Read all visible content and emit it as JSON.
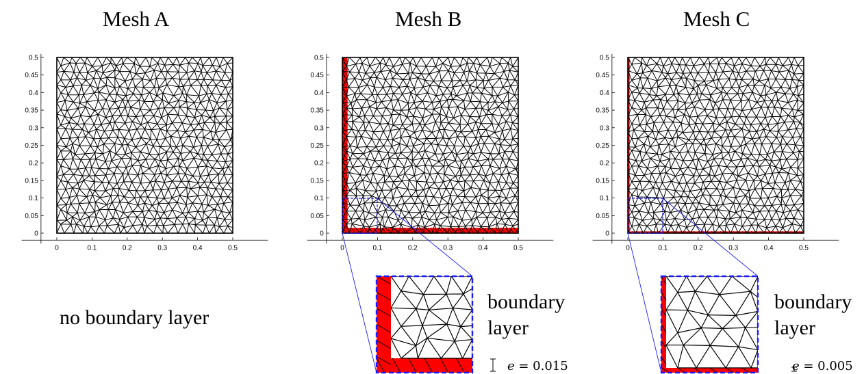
{
  "panels": [
    {
      "title": "Mesh A",
      "caption": "no boundary layer",
      "boundary_layer": false,
      "x_ticks": [
        "0",
        "0.1",
        "0.2",
        "0.3",
        "0.4",
        "0.5"
      ],
      "y_ticks": [
        "0",
        "0.05",
        "0.1",
        "0.15",
        "0.2",
        "0.25",
        "0.3",
        "0.35",
        "0.4",
        "0.45",
        "0.5"
      ]
    },
    {
      "title": "Mesh B",
      "caption_line1": "boundary",
      "caption_line2": "layer",
      "boundary_layer": true,
      "layer_thickness_e": "0.015",
      "eqn_var": "e",
      "eqn_rest": " = 0.015",
      "x_ticks": [
        "0",
        "0.1",
        "0.2",
        "0.3",
        "0.4",
        "0.5"
      ],
      "y_ticks": [
        "0",
        "0.05",
        "0.1",
        "0.15",
        "0.2",
        "0.25",
        "0.3",
        "0.35",
        "0.4",
        "0.45",
        "0.5"
      ]
    },
    {
      "title": "Mesh C",
      "caption_line1": "boundary",
      "caption_line2": "layer",
      "boundary_layer": true,
      "layer_thickness_e": "0.005",
      "eqn_var": "e",
      "eqn_rest": " = 0.005",
      "x_ticks": [
        "0",
        "0.1",
        "0.2",
        "0.3",
        "0.4",
        "0.5"
      ],
      "y_ticks": [
        "0",
        "0.05",
        "0.1",
        "0.15",
        "0.2",
        "0.25",
        "0.3",
        "0.35",
        "0.4",
        "0.45",
        "0.5"
      ]
    }
  ],
  "colors": {
    "mesh_edges": "#000000",
    "boundary_layer_fill": "#ff0000",
    "zoom_frame": "#1a1aff"
  }
}
